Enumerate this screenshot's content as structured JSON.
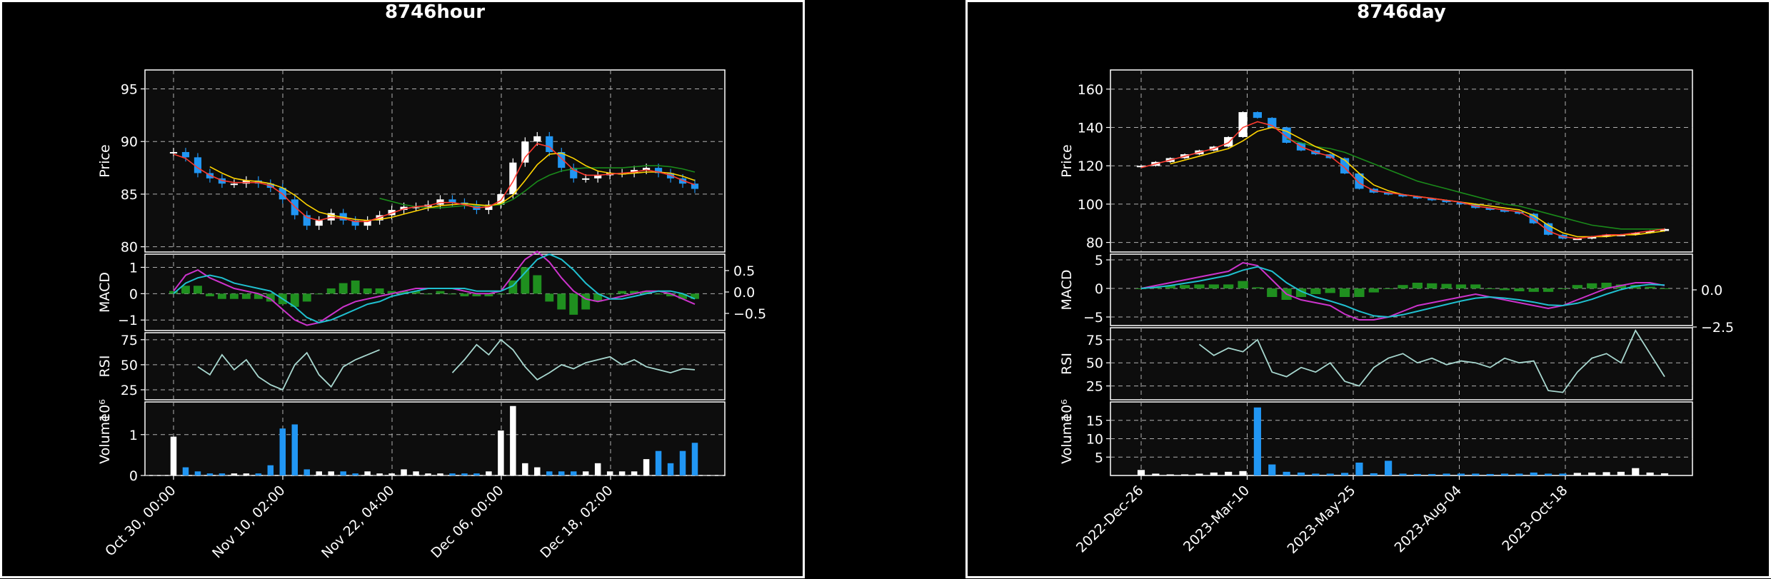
{
  "chart_data": [
    {
      "type": "candlestick",
      "title": "8746hour",
      "xticks": [
        "Oct 30, 00:00",
        "Nov 10, 02:00",
        "Nov 22, 04:00",
        "Dec 06, 00:00",
        "Dec 18, 02:00"
      ],
      "price": {
        "ylabel": "Price",
        "yticks": [
          "80",
          "85",
          "90",
          "95"
        ],
        "ylim": [
          79.5,
          96.8
        ],
        "close": [
          89.0,
          88.5,
          87.0,
          86.5,
          86.0,
          86.0,
          86.3,
          86.0,
          85.6,
          84.5,
          83.0,
          82.0,
          82.5,
          83.2,
          82.5,
          82.0,
          82.5,
          83.0,
          83.5,
          83.8,
          83.8,
          84.0,
          84.5,
          84.2,
          84.0,
          83.5,
          84.0,
          85.0,
          88.0,
          90.0,
          90.5,
          89.0,
          87.5,
          86.5,
          86.5,
          86.8,
          87.0,
          87.0,
          87.3,
          87.5,
          87.0,
          86.5,
          86.0,
          85.5
        ],
        "ma_short": [
          88.8,
          88.4,
          87.5,
          86.8,
          86.3,
          86.1,
          86.1,
          86.1,
          85.8,
          85.0,
          83.8,
          82.8,
          82.5,
          82.8,
          82.7,
          82.4,
          82.4,
          82.8,
          83.2,
          83.6,
          83.8,
          83.9,
          84.2,
          84.2,
          84.0,
          83.7,
          83.8,
          84.4,
          86.2,
          88.5,
          89.8,
          89.5,
          88.4,
          87.3,
          86.8,
          86.8,
          86.9,
          87.0,
          87.1,
          87.3,
          87.1,
          86.8,
          86.3,
          85.9
        ],
        "ma_long": [
          null,
          null,
          null,
          87.6,
          87.0,
          86.5,
          86.3,
          86.2,
          86.0,
          85.6,
          84.9,
          84.0,
          83.3,
          83.0,
          82.8,
          82.6,
          82.5,
          82.6,
          82.8,
          83.1,
          83.4,
          83.7,
          83.9,
          84.0,
          84.1,
          84.0,
          83.9,
          84.1,
          84.9,
          86.3,
          87.8,
          88.8,
          88.9,
          88.4,
          87.7,
          87.2,
          87.0,
          86.9,
          87.0,
          87.1,
          87.1,
          87.0,
          86.7,
          86.3
        ],
        "ma_trend": [
          null,
          null,
          null,
          null,
          null,
          null,
          null,
          null,
          null,
          null,
          null,
          null,
          null,
          null,
          null,
          null,
          null,
          84.6,
          84.3,
          84.0,
          83.8,
          83.7,
          83.7,
          83.8,
          83.9,
          83.9,
          83.9,
          84.0,
          84.5,
          85.3,
          86.2,
          86.8,
          87.2,
          87.4,
          87.5,
          87.5,
          87.5,
          87.5,
          87.6,
          87.7,
          87.7,
          87.6,
          87.4,
          87.1
        ]
      },
      "macd": {
        "ylabel": "MACD",
        "yticks": [
          "1",
          "0",
          "−1"
        ],
        "ylim": [
          -1.4,
          1.5
        ],
        "right_yticks": [
          "0.5",
          "0.0",
          "−0.5"
        ],
        "macd": [
          0.1,
          0.7,
          0.9,
          0.6,
          0.4,
          0.2,
          0.1,
          0.0,
          -0.2,
          -0.6,
          -1.0,
          -1.2,
          -1.1,
          -0.8,
          -0.5,
          -0.3,
          -0.2,
          -0.1,
          0.0,
          0.1,
          0.2,
          0.2,
          0.2,
          0.2,
          0.1,
          0.0,
          0.0,
          0.1,
          0.7,
          1.3,
          1.6,
          1.2,
          0.6,
          0.1,
          -0.2,
          -0.3,
          -0.2,
          -0.1,
          0.0,
          0.1,
          0.1,
          0.0,
          -0.2,
          -0.4
        ],
        "signal": [
          0.0,
          0.4,
          0.6,
          0.7,
          0.6,
          0.4,
          0.3,
          0.2,
          0.1,
          -0.2,
          -0.5,
          -0.9,
          -1.1,
          -1.0,
          -0.8,
          -0.6,
          -0.4,
          -0.3,
          -0.1,
          0.0,
          0.1,
          0.2,
          0.2,
          0.2,
          0.2,
          0.1,
          0.1,
          0.1,
          0.3,
          0.8,
          1.3,
          1.5,
          1.3,
          0.9,
          0.4,
          0.0,
          -0.2,
          -0.2,
          -0.1,
          0.0,
          0.1,
          0.1,
          0.0,
          -0.2
        ],
        "hist": [
          0.1,
          0.3,
          0.3,
          -0.1,
          -0.2,
          -0.2,
          -0.2,
          -0.2,
          -0.3,
          -0.4,
          -0.5,
          -0.3,
          0.0,
          0.2,
          0.4,
          0.5,
          0.2,
          0.2,
          0.1,
          0.1,
          0.1,
          0.0,
          0.1,
          0.0,
          -0.1,
          -0.1,
          -0.1,
          0.0,
          0.5,
          1.0,
          0.7,
          -0.3,
          -0.6,
          -0.8,
          -0.6,
          -0.3,
          0.0,
          0.1,
          0.1,
          0.1,
          0.0,
          -0.1,
          -0.2,
          -0.2
        ]
      },
      "rsi": {
        "ylabel": "RSI",
        "yticks": [
          "25",
          "50",
          "75"
        ],
        "ylim": [
          15,
          82
        ],
        "values": [
          null,
          null,
          48,
          40,
          60,
          45,
          55,
          38,
          30,
          25,
          50,
          62,
          40,
          28,
          48,
          55,
          60,
          65,
          null,
          null,
          null,
          null,
          null,
          42,
          55,
          70,
          60,
          75,
          65,
          48,
          35,
          42,
          50,
          46,
          52,
          55,
          58,
          50,
          55,
          48,
          45,
          42,
          46,
          45
        ]
      },
      "volume": {
        "ylabel": "Volume",
        "multiplier": "10⁶",
        "yticks": [
          "0",
          "1"
        ],
        "ylim": [
          0,
          1.8
        ],
        "values": [
          0.95,
          0.2,
          0.1,
          0.05,
          0.05,
          0.05,
          0.05,
          0.05,
          0.25,
          1.15,
          1.25,
          0.15,
          0.1,
          0.1,
          0.1,
          0.05,
          0.1,
          0.05,
          0.05,
          0.15,
          0.1,
          0.05,
          0.05,
          0.05,
          0.05,
          0.05,
          0.1,
          1.1,
          1.7,
          0.3,
          0.2,
          0.1,
          0.1,
          0.1,
          0.1,
          0.3,
          0.1,
          0.1,
          0.1,
          0.4,
          0.6,
          0.3,
          0.6,
          0.8
        ]
      }
    },
    {
      "type": "candlestick",
      "title": "8746day",
      "xticks": [
        "2022-Dec-26",
        "2023-Mar-10",
        "2023-May-25",
        "2023-Aug-04",
        "2023-Oct-18"
      ],
      "price": {
        "ylabel": "Price",
        "yticks": [
          "80",
          "100",
          "120",
          "140",
          "160"
        ],
        "ylim": [
          75,
          170
        ],
        "close": [
          120,
          122,
          124,
          126,
          128,
          130,
          135,
          148,
          145,
          140,
          132,
          128,
          126,
          124,
          116,
          108,
          106,
          105,
          104,
          103,
          102,
          101,
          100,
          98,
          97,
          96,
          95,
          90,
          84,
          82,
          82,
          83,
          84,
          84,
          85,
          86,
          87
        ],
        "ma_short": [
          119,
          121,
          123,
          125,
          127,
          129,
          132,
          140,
          143,
          141,
          135,
          130,
          127,
          125,
          119,
          111,
          107,
          106,
          105,
          104,
          103,
          102,
          101,
          99,
          98,
          97,
          96,
          92,
          86,
          83,
          82,
          83,
          84,
          84,
          85,
          86,
          87
        ],
        "ma_long": [
          null,
          null,
          121,
          123,
          125,
          127,
          129,
          133,
          138,
          140,
          138,
          134,
          130,
          127,
          123,
          116,
          110,
          107,
          105,
          104,
          103,
          102,
          101,
          100,
          99,
          98,
          97,
          94,
          89,
          85,
          83,
          83,
          83,
          84,
          84,
          85,
          86
        ],
        "ma_trend": [
          null,
          null,
          null,
          null,
          null,
          null,
          null,
          null,
          null,
          null,
          134,
          132,
          130,
          129,
          127,
          124,
          121,
          118,
          115,
          112,
          110,
          108,
          106,
          104,
          102,
          100,
          99,
          97,
          95,
          93,
          91,
          89,
          88,
          87,
          87,
          87,
          87
        ]
      },
      "macd": {
        "ylabel": "MACD",
        "yticks": [
          "5",
          "0",
          "−5"
        ],
        "ylim": [
          -6.5,
          6
        ],
        "right_yticks": [
          "0.0",
          "−2.5"
        ],
        "macd": [
          0.0,
          0.5,
          1.0,
          1.5,
          2.0,
          2.5,
          3.0,
          4.5,
          4.0,
          1.5,
          -1.0,
          -2.0,
          -2.5,
          -3.0,
          -4.5,
          -5.5,
          -5.5,
          -5.0,
          -4.0,
          -3.0,
          -2.5,
          -2.0,
          -1.5,
          -1.0,
          -1.5,
          -2.0,
          -2.5,
          -3.0,
          -3.5,
          -3.0,
          -2.0,
          -1.0,
          0.0,
          0.5,
          1.0,
          1.0,
          0.5
        ],
        "signal": [
          0.0,
          0.2,
          0.5,
          0.9,
          1.3,
          1.8,
          2.3,
          3.2,
          3.8,
          3.0,
          1.0,
          -0.5,
          -1.5,
          -2.2,
          -3.0,
          -4.0,
          -4.8,
          -5.0,
          -4.6,
          -4.0,
          -3.4,
          -2.8,
          -2.2,
          -1.7,
          -1.5,
          -1.7,
          -2.0,
          -2.4,
          -2.9,
          -3.0,
          -2.6,
          -1.9,
          -1.0,
          -0.2,
          0.4,
          0.7,
          0.6
        ],
        "hist": [
          0.0,
          0.3,
          0.5,
          0.6,
          0.7,
          0.7,
          0.7,
          1.3,
          0.2,
          -1.5,
          -2.0,
          -1.5,
          -1.0,
          -0.8,
          -1.5,
          -1.5,
          -0.7,
          0.0,
          0.6,
          1.0,
          0.9,
          0.8,
          0.7,
          0.7,
          0.0,
          -0.3,
          -0.5,
          -0.6,
          -0.6,
          0.0,
          0.6,
          0.9,
          1.0,
          0.7,
          0.6,
          0.3,
          -0.1
        ]
      },
      "rsi": {
        "ylabel": "RSI",
        "yticks": [
          "25",
          "50",
          "75"
        ],
        "ylim": [
          10,
          88
        ],
        "values": [
          null,
          null,
          null,
          null,
          70,
          58,
          66,
          62,
          75,
          40,
          35,
          45,
          40,
          50,
          30,
          25,
          45,
          55,
          60,
          50,
          55,
          48,
          52,
          50,
          45,
          55,
          50,
          52,
          20,
          18,
          40,
          55,
          60,
          50,
          85,
          60,
          35
        ]
      },
      "volume": {
        "ylabel": "Volume",
        "multiplier": "10⁶",
        "yticks": [
          "5",
          "10",
          "15"
        ],
        "ylim": [
          0,
          20
        ],
        "values": [
          1.5,
          0.5,
          0.3,
          0.3,
          0.5,
          0.8,
          1.0,
          1.2,
          18.5,
          3.0,
          1.0,
          0.8,
          0.5,
          0.5,
          0.7,
          3.5,
          0.6,
          4.0,
          0.5,
          0.4,
          0.4,
          0.5,
          0.5,
          0.5,
          0.4,
          0.5,
          0.5,
          0.8,
          0.5,
          0.5,
          0.7,
          0.8,
          0.9,
          1.0,
          2.0,
          0.8,
          0.6
        ]
      }
    }
  ],
  "colors": {
    "up": "#ffffff",
    "down": "#2196f3",
    "ma_short": "#ff3b30",
    "ma_long": "#ffd400",
    "ma_trend": "#1a8a1a",
    "macd_line": "#cc33cc",
    "signal_line": "#20c0d0",
    "hist": "#1f8f1f",
    "rsi": "#a8d8d0",
    "axes_bg": "#0d0d0d",
    "grid": "#b0b0b0"
  }
}
